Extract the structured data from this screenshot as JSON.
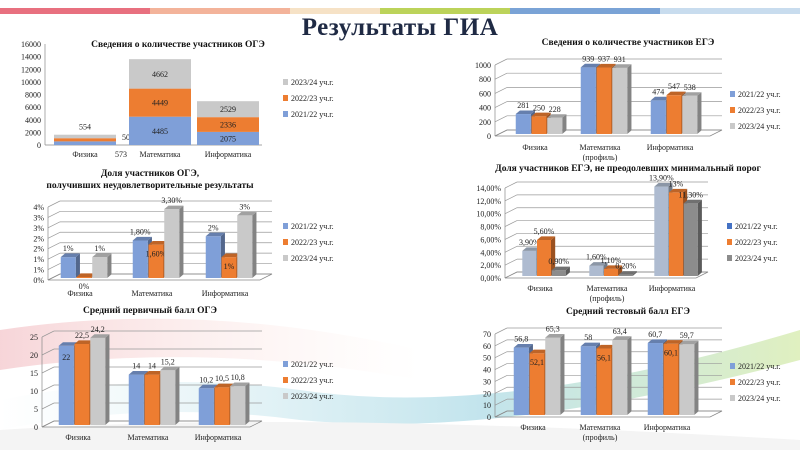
{
  "slide": {
    "title": "Результаты ГИА"
  },
  "colors": {
    "y2021": "#7f9fd8",
    "y2022": "#ed7d31",
    "y2023": "#c9c9c9",
    "y2021_ege_fail": "#aebbd0",
    "y2023_ege_fail": "#8c8c8c",
    "legend_ege_fail_2021": "#4472c4",
    "text": "#1a1a1a"
  },
  "chart_data": [
    {
      "type": "bar",
      "stacked": true,
      "three_d": false,
      "title": [
        "Сведения о количестве  участников  ОГЭ"
      ],
      "categories": [
        [
          "Физика"
        ],
        [
          "Математика"
        ],
        [
          "Информатика"
        ]
      ],
      "series": [
        {
          "name": "2021/22 уч.г.",
          "values": [
            573,
            4485,
            2075
          ],
          "labels": [
            "573",
            "4485",
            "2075"
          ]
        },
        {
          "name": "2022/23 уч.г.",
          "values": [
            503,
            4449,
            2336
          ],
          "labels": [
            "503",
            "4449",
            "2336"
          ]
        },
        {
          "name": "2023/24 уч.г.",
          "values": [
            554,
            4662,
            2529
          ],
          "labels": [
            "554",
            "4662",
            "2529"
          ]
        }
      ],
      "ylim": [
        0,
        16000
      ],
      "yticks": [
        "0",
        "2000",
        "4000",
        "6000",
        "8000",
        "10000",
        "12000",
        "14000",
        "16000"
      ],
      "legend": "right",
      "legend_order": "reversed",
      "grid": false
    },
    {
      "type": "bar",
      "stacked": false,
      "three_d": true,
      "title": [
        "Сведения о количестве  участников ЕГЭ"
      ],
      "categories": [
        [
          "Физика"
        ],
        [
          "Математика",
          "(профиль)"
        ],
        [
          "Информатика"
        ]
      ],
      "series": [
        {
          "name": "2021/22 уч.г.",
          "values": [
            281,
            939,
            474
          ],
          "labels": [
            "281",
            "939",
            "474"
          ]
        },
        {
          "name": "2022/23 уч.г.",
          "values": [
            250,
            937,
            547
          ],
          "labels": [
            "250",
            "937",
            "547"
          ]
        },
        {
          "name": "2023/24 уч.г.",
          "values": [
            228,
            931,
            538
          ],
          "labels": [
            "228",
            "931",
            "538"
          ]
        }
      ],
      "ylim": [
        0,
        1000
      ],
      "yticks": [
        "0",
        "200",
        "400",
        "600",
        "800",
        "1000"
      ],
      "legend": "right",
      "grid": true
    },
    {
      "type": "bar",
      "stacked": false,
      "three_d": true,
      "title": [
        "Доля участников ОГЭ,",
        "получивших неудовлетворительные  результаты"
      ],
      "categories": [
        [
          "Физика"
        ],
        [
          "Математика"
        ],
        [
          "Информатика"
        ]
      ],
      "series": [
        {
          "name": "2021/22 уч.г.",
          "values": [
            1,
            1.8,
            2
          ],
          "labels": [
            "1%",
            "1,80%",
            "2%"
          ]
        },
        {
          "name": "2022/23 уч.г.",
          "values": [
            0,
            1.6,
            1
          ],
          "labels": [
            "0%",
            "1,60%",
            "1%"
          ]
        },
        {
          "name": "2023/24 уч.г.",
          "values": [
            1,
            3.3,
            3
          ],
          "labels": [
            "1%",
            "3,30%",
            "3%"
          ]
        }
      ],
      "ylim": [
        0,
        3.5
      ],
      "yticks": [
        "0%",
        "1%",
        "1%",
        "2%",
        "2%",
        "3%",
        "3%",
        "4%"
      ],
      "legend": "right",
      "grid": true
    },
    {
      "type": "bar",
      "stacked": false,
      "three_d": true,
      "title": [
        "Доля участников ЕГЭ, не преодолевших минимальный порог"
      ],
      "categories": [
        [
          "Физика"
        ],
        [
          "Математика",
          "(профиль)"
        ],
        [
          "Информатика"
        ]
      ],
      "series": [
        {
          "name": "2021/22 уч.г.",
          "values": [
            3.9,
            1.6,
            13.9
          ],
          "labels": [
            "3,90%",
            "1,60%",
            "13,90%"
          ]
        },
        {
          "name": "2022/23 уч.г.",
          "values": [
            5.6,
            1.1,
            13
          ],
          "labels": [
            "5,60%",
            "1,10%",
            "13%"
          ]
        },
        {
          "name": "2023/24 уч.г.",
          "values": [
            0.9,
            0.2,
            11.3
          ],
          "labels": [
            "0,90%",
            "0,20%",
            "11,30%"
          ]
        }
      ],
      "ylim": [
        0,
        14
      ],
      "yticks": [
        "0,00%",
        "2,00%",
        "4,00%",
        "6,00%",
        "8,00%",
        "10,00%",
        "12,00%",
        "14,00%"
      ],
      "legend": "right",
      "grid": true
    },
    {
      "type": "bar",
      "stacked": false,
      "three_d": true,
      "title": [
        "Средний первичный балл ОГЭ"
      ],
      "categories": [
        [
          "Физика"
        ],
        [
          "Математика"
        ],
        [
          "Информатика"
        ]
      ],
      "series": [
        {
          "name": "2021/22 уч.г.",
          "values": [
            22,
            14,
            10.2
          ],
          "labels": [
            "22",
            "14",
            "10,2"
          ]
        },
        {
          "name": "2022/23 уч.г.",
          "values": [
            22.5,
            14,
            10.5
          ],
          "labels": [
            "22,5",
            "14",
            "10,5"
          ]
        },
        {
          "name": "2023/24 уч.г.",
          "values": [
            24.2,
            15.2,
            10.8
          ],
          "labels": [
            "24,2",
            "15,2",
            "10,8"
          ]
        }
      ],
      "ylim": [
        0,
        25
      ],
      "yticks": [
        "0",
        "5",
        "10",
        "15",
        "20",
        "25"
      ],
      "legend": "right",
      "grid": true
    },
    {
      "type": "bar",
      "stacked": false,
      "three_d": true,
      "title": [
        "Средний тестовый балл ЕГЭ"
      ],
      "categories": [
        [
          "Физика"
        ],
        [
          "Математика",
          "(профиль)"
        ],
        [
          "Информатика"
        ]
      ],
      "series": [
        {
          "name": "2021/22 уч.г.",
          "values": [
            56.8,
            58,
            60.7
          ],
          "labels": [
            "56,8",
            "58",
            "60,7"
          ]
        },
        {
          "name": "2022/23 уч.г.",
          "values": [
            52.1,
            56.1,
            60.1
          ],
          "labels": [
            "52,1",
            "56,1",
            "60,1"
          ]
        },
        {
          "name": "2023/24 уч.г.",
          "values": [
            65.3,
            63.4,
            59.7
          ],
          "labels": [
            "65,3",
            "63,4",
            "59,7"
          ]
        }
      ],
      "ylim": [
        0,
        70
      ],
      "yticks": [
        "0",
        "10",
        "20",
        "30",
        "40",
        "50",
        "60",
        "70"
      ],
      "legend": "right",
      "grid": true
    }
  ]
}
